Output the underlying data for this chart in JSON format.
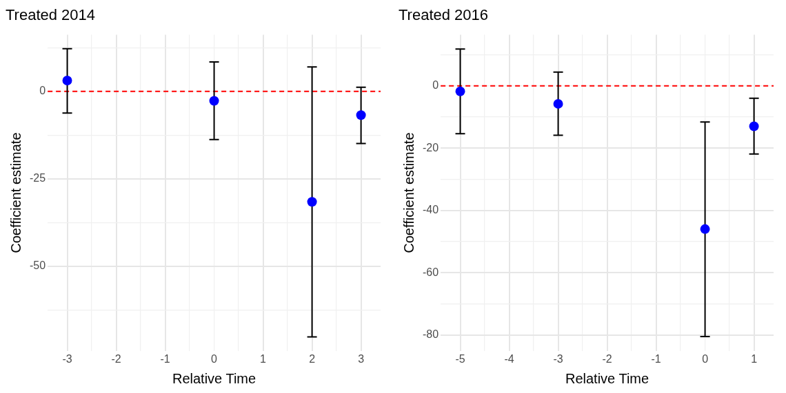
{
  "chart_data": [
    {
      "type": "scatter",
      "title": "Treated 2014",
      "xlabel": "Relative Time",
      "ylabel": "Coefficient estimate",
      "x": [
        -3,
        0,
        2,
        3
      ],
      "values": [
        3.1,
        -2.7,
        -31.6,
        -6.8
      ],
      "errors": [
        [
          -6.2,
          12.2
        ],
        [
          -13.8,
          8.4
        ],
        [
          -70.2,
          7.0
        ],
        [
          -14.9,
          1.2
        ]
      ],
      "color": "#0000ff",
      "marker": "circle",
      "xlim": [
        -3.4,
        3.4
      ],
      "ylim": [
        -74.2,
        16.2
      ],
      "xticks": [
        -3,
        {
          "value": -2.5,
          "label": null
        },
        -2,
        {
          "value": -1.5,
          "label": null
        },
        -1,
        {
          "value": -0.5,
          "label": null
        },
        0,
        {
          "value": 0.5,
          "label": null
        },
        1,
        {
          "value": 1.5,
          "label": null
        },
        2,
        {
          "value": 2.5,
          "label": null
        },
        3
      ],
      "yticks": [
        {
          "value": -62.5,
          "label": null
        },
        -50,
        {
          "value": -37.5,
          "label": null
        },
        -25,
        {
          "value": -12.5,
          "label": null
        },
        0,
        {
          "value": 12.5,
          "label": null
        }
      ],
      "grid": true,
      "ref_lines": [
        {
          "axis": "y",
          "value": 0,
          "color": "#ff0000",
          "line_style": "dashed"
        }
      ]
    },
    {
      "type": "scatter",
      "title": "Treated 2016",
      "xlabel": "Relative Time",
      "ylabel": "Coefficient estimate",
      "x": [
        -5,
        -3,
        0,
        1
      ],
      "values": [
        -1.8,
        -5.8,
        -46.0,
        -13.0
      ],
      "errors": [
        [
          -15.4,
          11.8
        ],
        [
          -15.9,
          4.4
        ],
        [
          -80.5,
          -11.6
        ],
        [
          -21.9,
          -4.0
        ]
      ],
      "color": "#0000ff",
      "marker": "circle",
      "xlim": [
        -5.4,
        1.4
      ],
      "ylim": [
        -85.1,
        16.4
      ],
      "xticks": [
        -5,
        {
          "value": -4.5,
          "label": null
        },
        -4,
        {
          "value": -3.5,
          "label": null
        },
        -3,
        {
          "value": -2.5,
          "label": null
        },
        -2,
        {
          "value": -1.5,
          "label": null
        },
        -1,
        {
          "value": -0.5,
          "label": null
        },
        0,
        {
          "value": 0.5,
          "label": null
        },
        1
      ],
      "yticks": [
        -80,
        {
          "value": -70,
          "label": null
        },
        -60,
        {
          "value": -50,
          "label": null
        },
        -40,
        {
          "value": -30,
          "label": null
        },
        -20,
        {
          "value": -10,
          "label": null
        },
        0,
        {
          "value": 10,
          "label": null
        }
      ],
      "grid": true,
      "ref_lines": [
        {
          "axis": "y",
          "value": 0,
          "color": "#ff0000",
          "line_style": "dashed"
        }
      ]
    }
  ]
}
